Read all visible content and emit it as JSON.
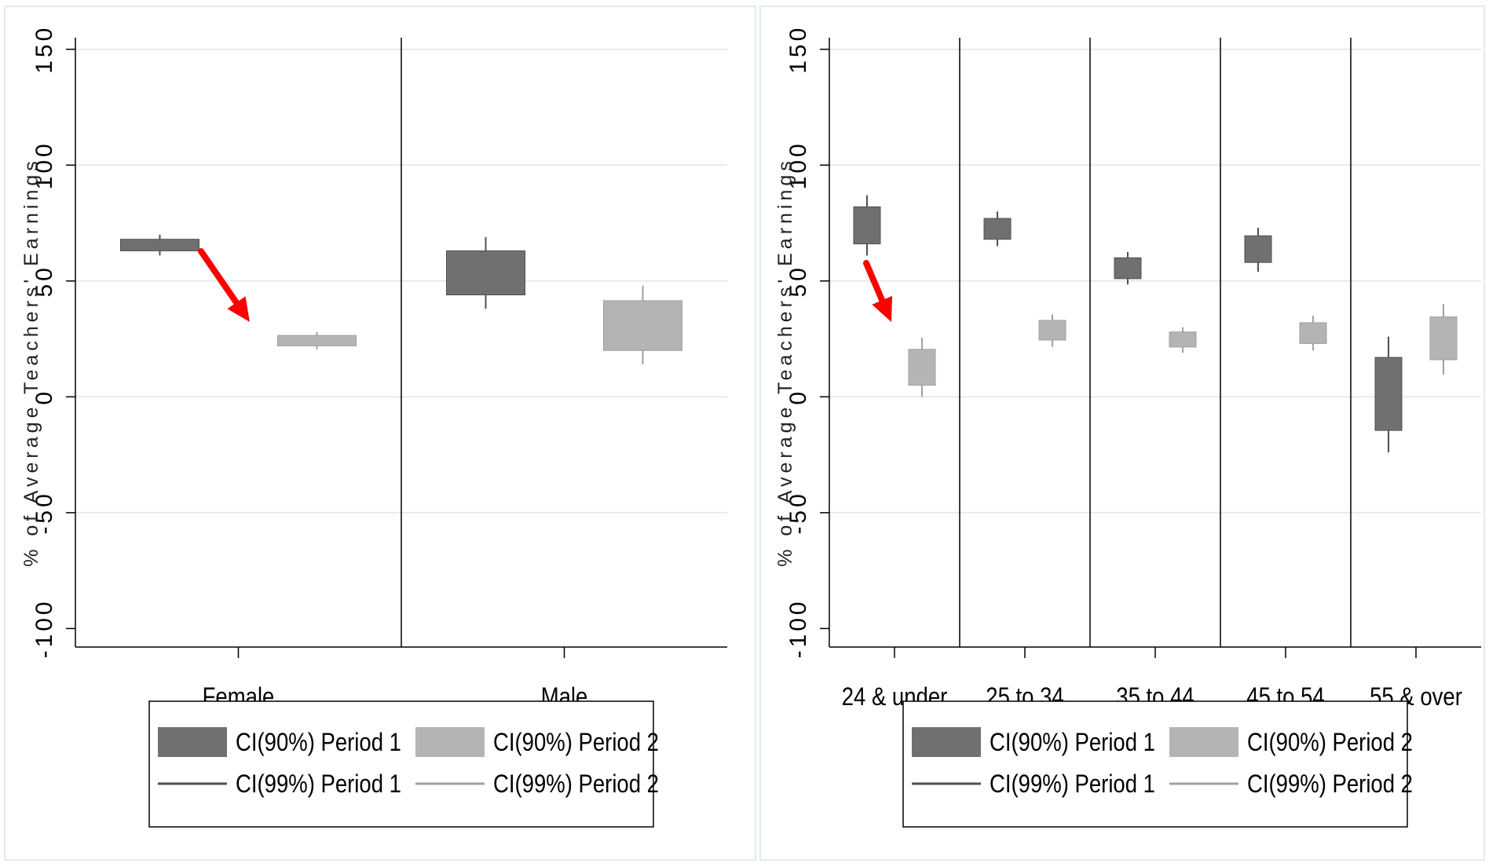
{
  "chart_data": [
    {
      "type": "box",
      "title": "",
      "xlabel": "",
      "ylabel": "% of Average Teachers' Earnings",
      "ylim": [
        -108,
        155
      ],
      "yticks": [
        -100,
        -50,
        0,
        50,
        100,
        150
      ],
      "ytick_labels": [
        "-100",
        "-50",
        "0",
        "50",
        "100",
        "150"
      ],
      "grid": true,
      "categories": [
        "Female",
        "Male"
      ],
      "series": [
        {
          "name": "Period 1",
          "ci90": [
            [
              63,
              68
            ],
            [
              44,
              63
            ]
          ],
          "ci99": [
            [
              61,
              70
            ],
            [
              38,
              69
            ]
          ]
        },
        {
          "name": "Period 2",
          "ci90": [
            [
              22,
              26.5
            ],
            [
              20,
              41.5
            ]
          ],
          "ci99": [
            [
              20.5,
              28
            ],
            [
              14,
              48
            ]
          ]
        }
      ],
      "legend": {
        "position": "bottom",
        "items": [
          "CI(90%) Period 1",
          "CI(90%) Period 2",
          "CI(99%) Period 1",
          "CI(99%) Period 2"
        ]
      },
      "annotation": "red arrow pointing to Female Period 2"
    },
    {
      "type": "box",
      "title": "",
      "xlabel": "",
      "ylabel": "% of Average Teachers' Earnings",
      "ylim": [
        -108,
        155
      ],
      "yticks": [
        -100,
        -50,
        0,
        50,
        100,
        150
      ],
      "ytick_labels": [
        "-100",
        "-50",
        "0",
        "50",
        "100",
        "150"
      ],
      "grid": true,
      "categories": [
        "24 & under",
        "25 to 34",
        "35 to 44",
        "45 to 54",
        "55 & over"
      ],
      "series": [
        {
          "name": "Period 1",
          "ci90": [
            [
              66,
              82
            ],
            [
              68,
              77
            ],
            [
              51,
              60
            ],
            [
              58,
              69.5
            ],
            [
              -14.5,
              17
            ]
          ],
          "ci99": [
            [
              61,
              87
            ],
            [
              65,
              80
            ],
            [
              48.5,
              62.5
            ],
            [
              54,
              73
            ],
            [
              -24,
              26
            ]
          ]
        },
        {
          "name": "Period 2",
          "ci90": [
            [
              5,
              20.5
            ],
            [
              24.5,
              33
            ],
            [
              21.5,
              28
            ],
            [
              23,
              32
            ],
            [
              16,
              34.5
            ]
          ],
          "ci99": [
            [
              0,
              25.5
            ],
            [
              21.5,
              35.5
            ],
            [
              19,
              30
            ],
            [
              20,
              35
            ],
            [
              9.5,
              40
            ]
          ]
        }
      ],
      "legend": {
        "position": "bottom",
        "items": [
          "CI(90%) Period 1",
          "CI(90%) Period 2",
          "CI(99%) Period 1",
          "CI(99%) Period 2"
        ]
      },
      "annotation": "red arrow pointing to 24 & under Period 2"
    }
  ],
  "colors": {
    "period1": "#707070",
    "period2": "#b4b4b4",
    "period1_line": "#505050",
    "period2_line": "#a0a0a0",
    "grid": "#e3ecee",
    "arrow": "#ff0000",
    "axis": "#000000"
  }
}
